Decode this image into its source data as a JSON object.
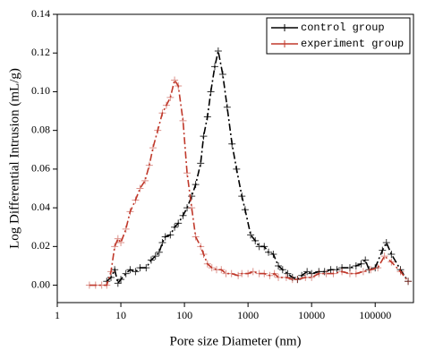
{
  "chart_data": {
    "type": "line",
    "log_x": true,
    "xlabel": "Pore size Diameter (nm)",
    "ylabel": "Log Differential Intrusion (mL/g)",
    "xlim": [
      1,
      400000
    ],
    "ylim": [
      -0.009,
      0.14
    ],
    "xticks": [
      1,
      10,
      100,
      1000,
      10000,
      100000
    ],
    "yticks": [
      {
        "value": 0,
        "label": "0.00"
      },
      {
        "value": 0.02,
        "label": "0.02"
      },
      {
        "value": 0.04,
        "label": "0.04"
      },
      {
        "value": 0.06,
        "label": "0.06"
      },
      {
        "value": 0.08,
        "label": "0.08"
      },
      {
        "value": 0.1,
        "label": "0.10"
      },
      {
        "value": 0.12,
        "label": "0.12"
      },
      {
        "value": 0.14,
        "label": "0.14"
      }
    ],
    "legend": "upper right",
    "series": [
      {
        "name": "control group",
        "color": "#000000",
        "x": [
          6,
          7,
          8,
          9,
          10,
          12,
          14,
          17,
          20,
          25,
          30,
          35,
          40,
          45,
          50,
          60,
          70,
          80,
          95,
          110,
          130,
          150,
          180,
          200,
          230,
          260,
          300,
          340,
          400,
          470,
          560,
          660,
          800,
          900,
          1100,
          1300,
          1500,
          1800,
          2100,
          2500,
          3000,
          3500,
          4200,
          5000,
          6000,
          7000,
          8500,
          10000,
          13000,
          16000,
          20000,
          25000,
          30000,
          40000,
          50000,
          60000,
          70000,
          80000,
          100000,
          130000,
          150000,
          180000,
          250000,
          330000
        ],
        "values": [
          0.002,
          0.004,
          0.008,
          0.001,
          0.003,
          0.006,
          0.008,
          0.007,
          0.009,
          0.009,
          0.013,
          0.015,
          0.017,
          0.022,
          0.025,
          0.026,
          0.03,
          0.032,
          0.036,
          0.04,
          0.046,
          0.052,
          0.063,
          0.077,
          0.087,
          0.1,
          0.113,
          0.121,
          0.109,
          0.092,
          0.073,
          0.06,
          0.046,
          0.039,
          0.026,
          0.023,
          0.02,
          0.02,
          0.017,
          0.016,
          0.01,
          0.008,
          0.006,
          0.004,
          0.003,
          0.005,
          0.007,
          0.006,
          0.007,
          0.007,
          0.008,
          0.008,
          0.009,
          0.009,
          0.01,
          0.011,
          0.013,
          0.008,
          0.009,
          0.018,
          0.022,
          0.016,
          0.008,
          0.002
        ]
      },
      {
        "name": "experiment group",
        "color": "#c0392b",
        "x": [
          3.2,
          4,
          5,
          6,
          7,
          8,
          9,
          10,
          12,
          14,
          17,
          20,
          24,
          28,
          32,
          38,
          45,
          52,
          60,
          70,
          80,
          95,
          110,
          130,
          150,
          180,
          200,
          230,
          270,
          320,
          380,
          450,
          550,
          700,
          800,
          1000,
          1200,
          1500,
          1800,
          2200,
          2600,
          3000,
          4000,
          5000,
          6000,
          8000,
          10000,
          13000,
          17000,
          22000,
          30000,
          40000,
          50000,
          65000,
          85000,
          110000,
          140000,
          180000,
          250000,
          330000
        ],
        "values": [
          0,
          0,
          0,
          0,
          0.007,
          0.02,
          0.024,
          0.022,
          0.029,
          0.038,
          0.044,
          0.05,
          0.054,
          0.062,
          0.071,
          0.08,
          0.089,
          0.093,
          0.097,
          0.106,
          0.103,
          0.085,
          0.058,
          0.04,
          0.025,
          0.02,
          0.016,
          0.011,
          0.009,
          0.008,
          0.008,
          0.006,
          0.006,
          0.005,
          0.006,
          0.006,
          0.007,
          0.006,
          0.006,
          0.005,
          0.006,
          0.004,
          0.004,
          0.003,
          0.003,
          0.004,
          0.004,
          0.006,
          0.006,
          0.006,
          0.007,
          0.006,
          0.006,
          0.007,
          0.008,
          0.009,
          0.015,
          0.012,
          0.007,
          0.002
        ]
      }
    ]
  }
}
